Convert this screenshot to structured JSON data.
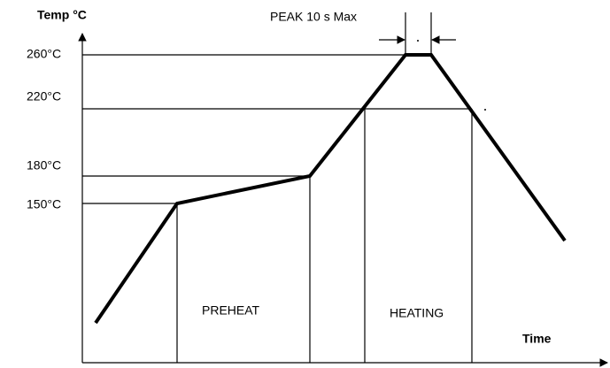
{
  "axes": {
    "y_label": "Temp °C",
    "x_label": "Time"
  },
  "temperatures": [
    "260°C",
    "220°C",
    "180°C",
    "150°C"
  ],
  "zones": [
    "PREHEAT",
    "HEATING"
  ],
  "peak_note": "PEAK 10 s Max"
}
